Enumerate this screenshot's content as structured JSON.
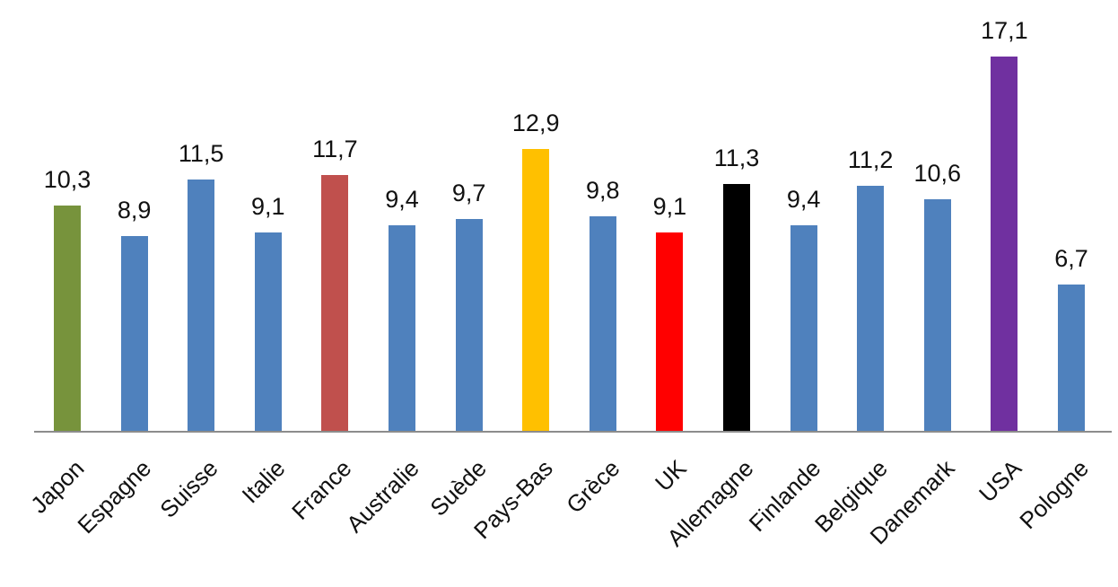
{
  "chart_data": {
    "type": "bar",
    "title": "",
    "xlabel": "",
    "ylabel": "",
    "ylim": [
      0,
      17.1
    ],
    "grid": false,
    "legend": "none",
    "categories": [
      "Japon",
      "Espagne",
      "Suisse",
      "Italie",
      "France",
      "Australie",
      "Suède",
      "Pays-Bas",
      "Grèce",
      "UK",
      "Allemagne",
      "Finlande",
      "Belgique",
      "Danemark",
      "USA",
      "Pologne"
    ],
    "values": [
      10.3,
      8.9,
      11.5,
      9.1,
      11.7,
      9.4,
      9.7,
      12.9,
      9.8,
      9.1,
      11.3,
      9.4,
      11.2,
      10.6,
      17.1,
      6.7
    ],
    "value_labels": [
      "10,3",
      "8,9",
      "11,5",
      "9,1",
      "11,7",
      "9,4",
      "9,7",
      "12,9",
      "9,8",
      "9,1",
      "11,3",
      "9,4",
      "11,2",
      "10,6",
      "17,1",
      "6,7"
    ],
    "bar_colors": [
      "#77933c",
      "#4f81bd",
      "#4f81bd",
      "#4f81bd",
      "#c0504d",
      "#4f81bd",
      "#4f81bd",
      "#ffc000",
      "#4f81bd",
      "#ff0000",
      "#000000",
      "#4f81bd",
      "#4f81bd",
      "#4f81bd",
      "#7030a0",
      "#4f81bd"
    ]
  }
}
